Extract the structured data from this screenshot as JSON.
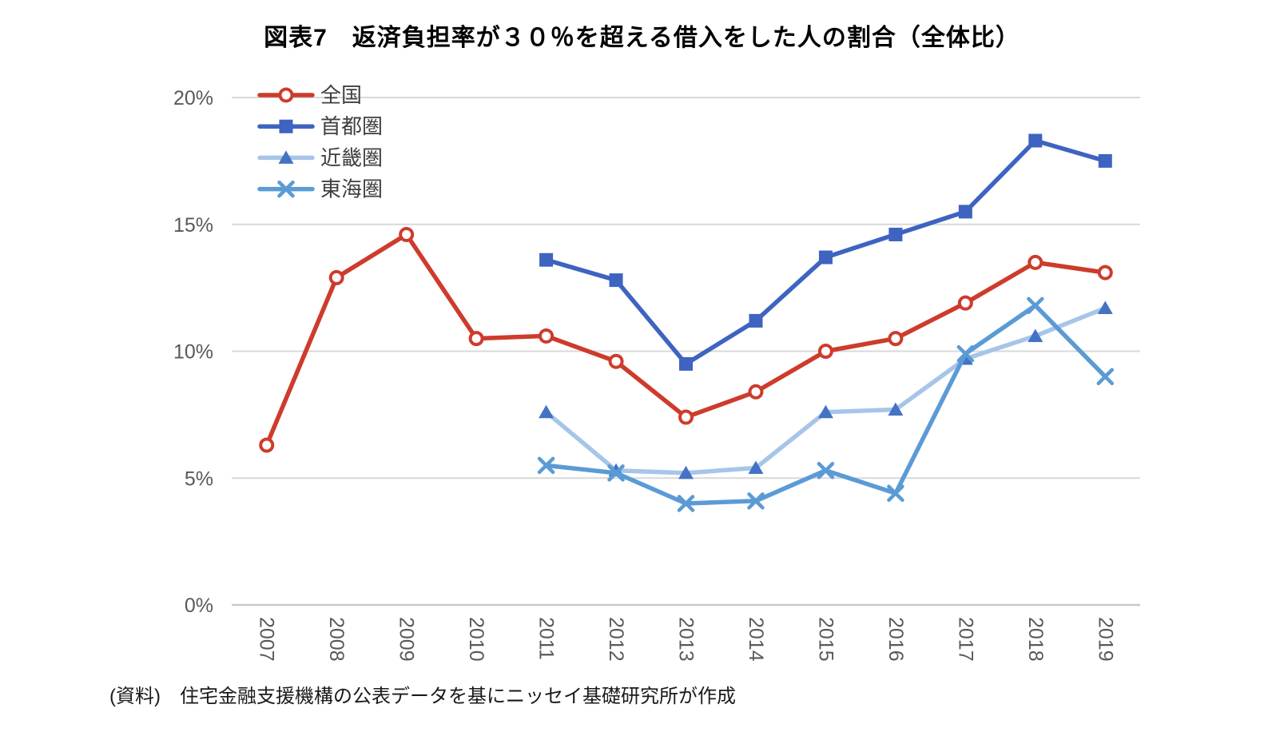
{
  "title": "図表7　返済負担率が３０％を超える借入をした人の割合（全体比）",
  "source_note": "(資料)　住宅金融支援機構の公表データを基にニッセイ基礎研究所が作成",
  "chart_data": {
    "type": "line",
    "title": "図表7　返済負担率が３０％を超える借入をした人の割合（全体比）",
    "categories": [
      "2007",
      "2008",
      "2009",
      "2010",
      "2011",
      "2012",
      "2013",
      "2014",
      "2015",
      "2016",
      "2017",
      "2018",
      "2019"
    ],
    "xlabel": "",
    "ylabel": "",
    "ylim": [
      0,
      20
    ],
    "y_ticks": [
      {
        "value": 0,
        "label": "0%"
      },
      {
        "value": 5,
        "label": "5%"
      },
      {
        "value": 10,
        "label": "10%"
      },
      {
        "value": 15,
        "label": "15%"
      },
      {
        "value": 20,
        "label": "20%"
      }
    ],
    "grid": true,
    "legend_position": "inside-top-left",
    "gridline_color": "#D9D9D9",
    "axis_label_color": "#595959",
    "legend_text_color": "#404040",
    "series": [
      {
        "name": "全国",
        "marker": "open-circle",
        "color": "#CE3B2C",
        "values": [
          6.3,
          12.9,
          14.6,
          10.5,
          10.6,
          9.6,
          7.4,
          8.4,
          10.0,
          10.5,
          11.9,
          13.5,
          13.1
        ]
      },
      {
        "name": "首都圏",
        "marker": "square",
        "color": "#3E63C0",
        "values": [
          null,
          null,
          null,
          null,
          13.6,
          12.8,
          9.5,
          11.2,
          13.7,
          14.6,
          15.5,
          18.3,
          17.5
        ]
      },
      {
        "name": "近畿圏",
        "marker": "triangle",
        "color": "#A7C5E8",
        "marker_color": "#4472C4",
        "values": [
          null,
          null,
          null,
          null,
          7.6,
          5.3,
          5.2,
          5.4,
          7.6,
          7.7,
          9.7,
          10.6,
          11.7
        ]
      },
      {
        "name": "東海圏",
        "marker": "x",
        "color": "#5B9BD5",
        "values": [
          null,
          null,
          null,
          null,
          5.5,
          5.2,
          4.0,
          4.1,
          5.3,
          4.4,
          9.9,
          11.8,
          9.0
        ]
      }
    ]
  }
}
